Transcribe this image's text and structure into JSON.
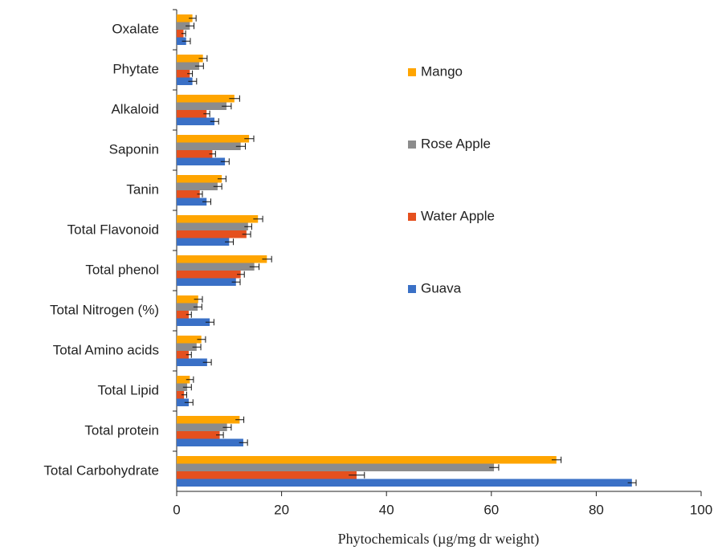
{
  "chart_data": {
    "type": "barh",
    "xlabel": "Phytochemicals (µg/mg dr weight)",
    "categories": [
      "Oxalate",
      "Phytate",
      "Alkaloid",
      "Saponin",
      "Tanin",
      "Total Flavonoid",
      "Total phenol",
      "Total Nitrogen (%)",
      "Total Amino acids",
      "Total Lipid",
      "Total protein",
      "Total Carbohydrate"
    ],
    "series": [
      {
        "name": "Mango",
        "color": "#ffa500",
        "values": [
          3,
          5,
          11,
          13.8,
          8.6,
          15.5,
          17.2,
          4.1,
          4.7,
          2.5,
          12,
          72.4
        ],
        "errors": [
          0.7,
          0.8,
          1,
          0.9,
          0.8,
          0.9,
          0.9,
          0.8,
          0.8,
          0.7,
          0.8,
          0.9
        ]
      },
      {
        "name": "Rose Apple",
        "color": "#8c8c8c",
        "values": [
          2.5,
          4.3,
          9.5,
          12.2,
          7.8,
          13.6,
          14.8,
          4,
          3.8,
          2,
          9.6,
          60.5
        ],
        "errors": [
          0.8,
          0.8,
          0.9,
          0.9,
          0.8,
          0.7,
          0.9,
          0.8,
          0.8,
          0.8,
          0.8,
          0.9
        ]
      },
      {
        "name": "Water Apple",
        "color": "#e5501e",
        "values": [
          1.3,
          2.5,
          5.7,
          6.8,
          4.4,
          13.3,
          12.2,
          2.3,
          2.3,
          1.4,
          8.2,
          34.3
        ],
        "errors": [
          0.4,
          0.5,
          0.6,
          0.6,
          0.5,
          0.8,
          0.7,
          0.5,
          0.5,
          0.5,
          0.7,
          1.5
        ]
      },
      {
        "name": "Guava",
        "color": "#3a70c6",
        "values": [
          1.8,
          3,
          7.2,
          9.2,
          5.7,
          10,
          11.3,
          6.3,
          5.8,
          2.3,
          12.7,
          86.8
        ],
        "errors": [
          0.8,
          0.8,
          0.8,
          0.8,
          0.8,
          0.8,
          0.8,
          0.8,
          0.8,
          0.8,
          0.8,
          0.8
        ]
      }
    ],
    "xlim": [
      0,
      100
    ],
    "xticks": [
      0,
      20,
      40,
      60,
      80,
      100
    ],
    "grid": false,
    "legend": "right"
  }
}
